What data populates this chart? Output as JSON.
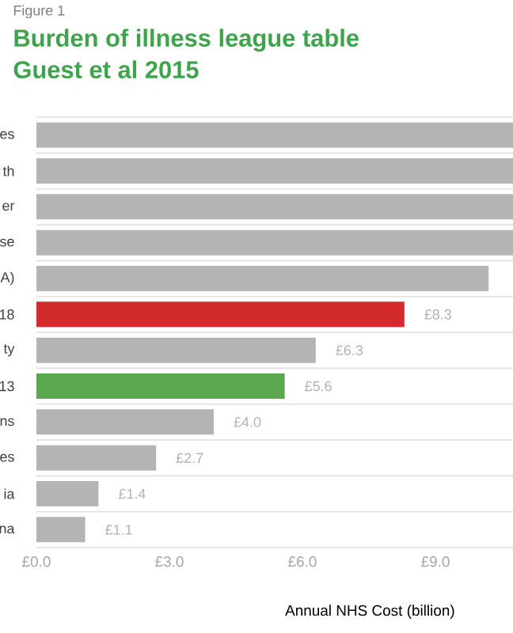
{
  "chart_data": {
    "type": "bar",
    "orientation": "horizontal",
    "title": "Burden of illness league table",
    "subtitle": "Guest et al 2015",
    "annotations": [
      "Figure 1"
    ],
    "xlabel": "Annual NHS Cost (billion)",
    "categories": [
      "es",
      "th",
      "er",
      "se",
      "A)",
      "18",
      "ty",
      "13",
      "ns",
      "es",
      "ia",
      "na"
    ],
    "values": [
      10.75,
      10.75,
      10.75,
      10.75,
      10.2,
      8.3,
      6.3,
      5.6,
      4.0,
      2.7,
      1.4,
      1.1
    ],
    "value_labels": [
      null,
      null,
      null,
      null,
      null,
      "£8.3",
      "£6.3",
      "£5.6",
      "£4.0",
      "£2.7",
      "£1.4",
      "£1.1"
    ],
    "colors": [
      "#b4b4b4",
      "#b4b4b4",
      "#b4b4b4",
      "#b4b4b4",
      "#b4b4b4",
      "#d32b2b",
      "#b4b4b4",
      "#5aa84e",
      "#b4b4b4",
      "#b4b4b4",
      "#b4b4b4",
      "#b4b4b4"
    ],
    "xlim": [
      0,
      10.75
    ],
    "xticks": [
      {
        "value": 0,
        "label": "£0.0"
      },
      {
        "value": 3,
        "label": "£3.0"
      },
      {
        "value": 6,
        "label": "£6.0"
      },
      {
        "value": 9,
        "label": "£9.0"
      }
    ],
    "grid": "y"
  }
}
